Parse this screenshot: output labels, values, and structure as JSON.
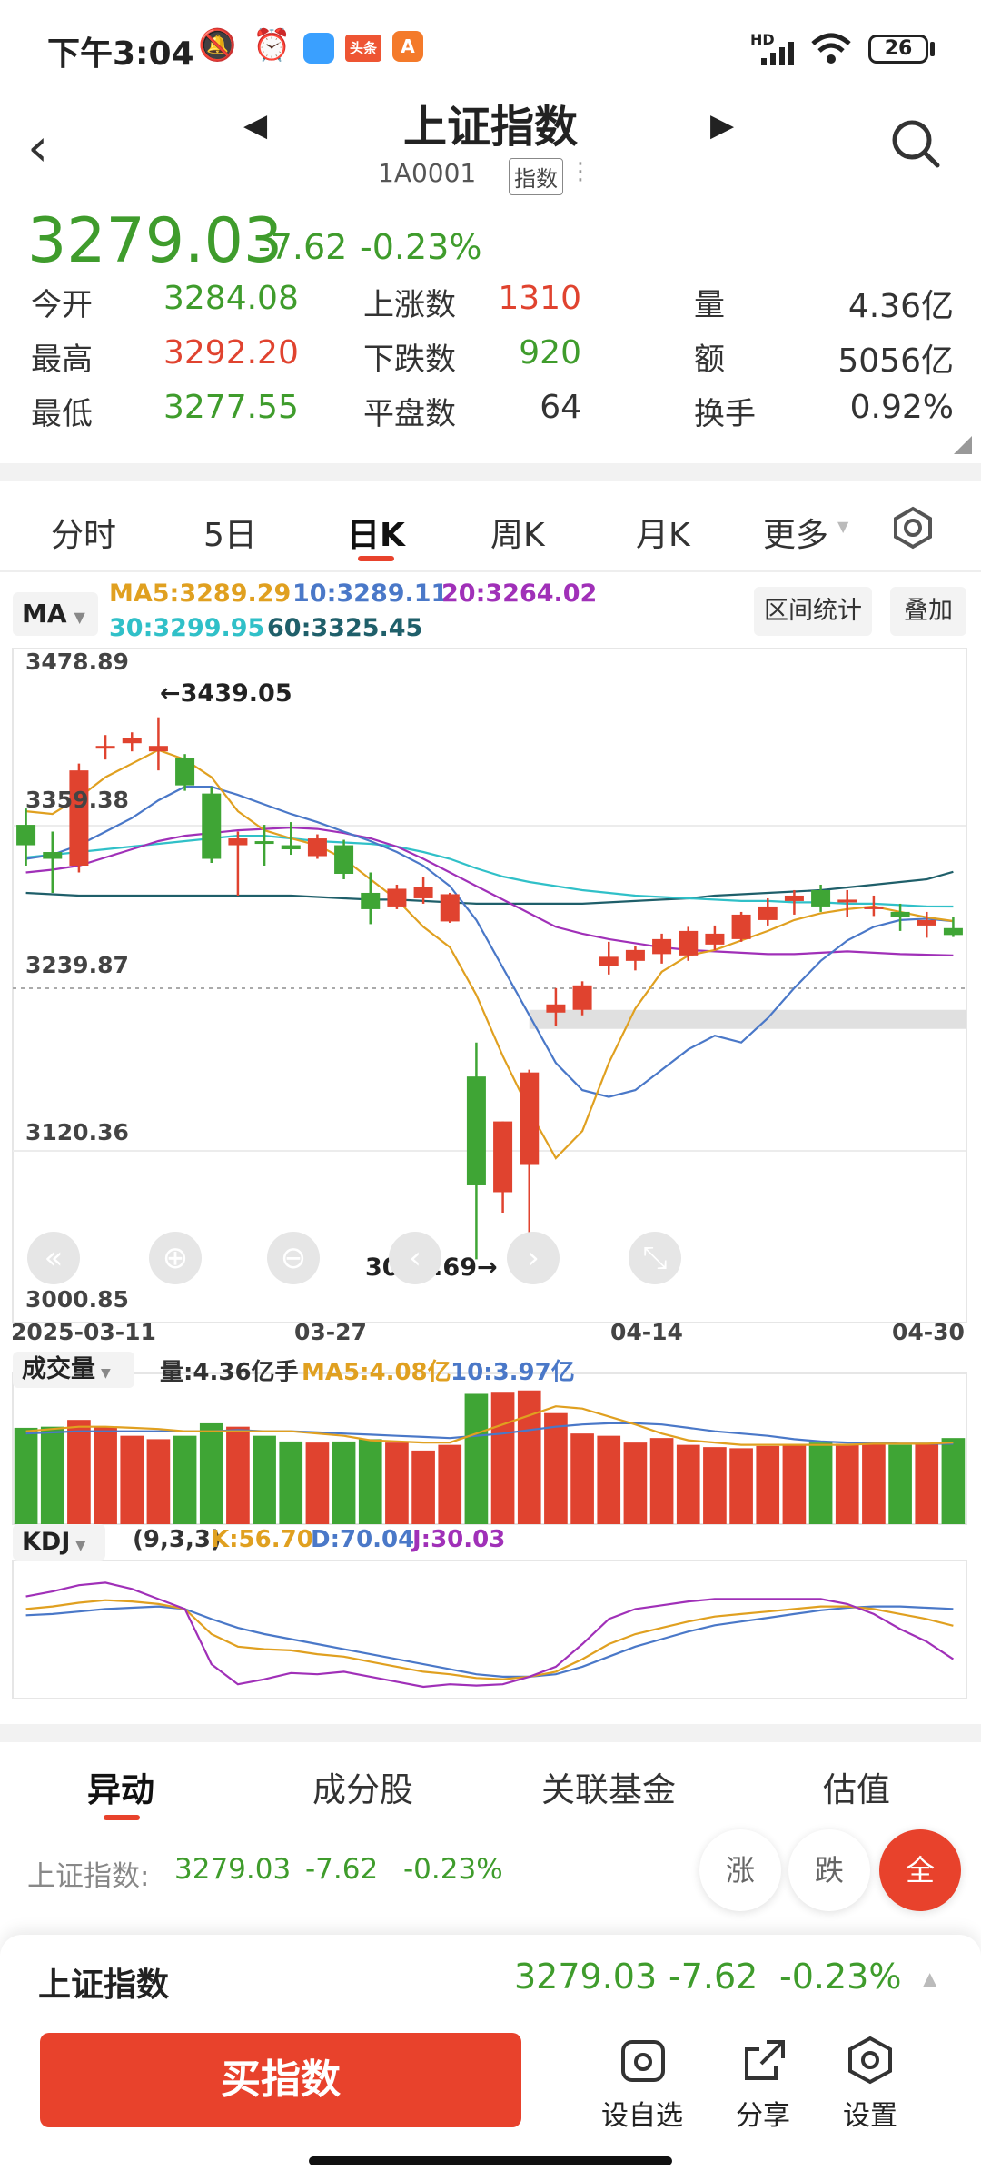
{
  "status": {
    "time": "下午3:04",
    "net": "HD",
    "battery": "26",
    "app1": "头条",
    "app2": "A"
  },
  "header": {
    "title": "上证指数",
    "code": "1A0001",
    "tag": "指数"
  },
  "quote": {
    "price": "3279.03",
    "change": "-7.62",
    "pct": "-0.23%"
  },
  "stats": [
    {
      "label": "今开",
      "value": "3284.08",
      "color": "green"
    },
    {
      "label": "上涨数",
      "value": "1310",
      "color": "red"
    },
    {
      "label": "量",
      "value": "4.36亿",
      "color": "dark"
    },
    {
      "label": "最高",
      "value": "3292.20",
      "color": "red"
    },
    {
      "label": "下跌数",
      "value": "920",
      "color": "green"
    },
    {
      "label": "额",
      "value": "5056亿",
      "color": "dark"
    },
    {
      "label": "最低",
      "value": "3277.55",
      "color": "green"
    },
    {
      "label": "平盘数",
      "value": "64",
      "color": "dark"
    },
    {
      "label": "换手",
      "value": "0.92%",
      "color": "dark"
    }
  ],
  "tabs": [
    "分时",
    "5日",
    "日K",
    "周K",
    "月K",
    "更多"
  ],
  "active_tab": "日K",
  "ma": {
    "selector": "MA",
    "ma5": "MA5:3289.29",
    "ma10": "10:3289.11",
    "ma20": "20:3264.02",
    "ma30": "30:3299.95",
    "ma60": "60:3325.45",
    "btn_range": "区间统计",
    "btn_overlay": "叠加"
  },
  "price_axis": [
    "3478.89",
    "3359.38",
    "3239.87",
    "3120.36",
    "3000.85"
  ],
  "annotations": {
    "high": "←3439.05",
    "low": "3040.69→"
  },
  "date_axis": [
    "2025-03-11",
    "03-27",
    "04-14",
    "04-30"
  ],
  "volume": {
    "selector": "成交量",
    "total": "量:4.36亿手",
    "ma5": "MA5:4.08亿",
    "ma10": "10:3.97亿"
  },
  "kdj": {
    "selector": "KDJ",
    "params": "(9,3,3)",
    "k": "K:56.70",
    "d": "D:70.04",
    "j": "J:30.03"
  },
  "chart_colors": {
    "up": "#e0432f",
    "down": "#3fa535",
    "ma5": "#e0a020",
    "ma10": "#4a78c8",
    "ma20": "#a030b8",
    "ma30": "#30c0c8",
    "ma60": "#1f5f6a"
  },
  "chart_data": {
    "type": "candlestick",
    "y_range": [
      3000.85,
      3478.89
    ],
    "candles": [
      {
        "o": 3360,
        "h": 3372,
        "l": 3330,
        "c": 3345
      },
      {
        "o": 3340,
        "h": 3355,
        "l": 3310,
        "c": 3335
      },
      {
        "o": 3330,
        "h": 3405,
        "l": 3325,
        "c": 3400
      },
      {
        "o": 3416,
        "h": 3426,
        "l": 3408,
        "c": 3418
      },
      {
        "o": 3420,
        "h": 3428,
        "l": 3414,
        "c": 3424
      },
      {
        "o": 3414,
        "h": 3439.05,
        "l": 3400,
        "c": 3418
      },
      {
        "o": 3409,
        "h": 3412,
        "l": 3385,
        "c": 3389
      },
      {
        "o": 3383,
        "h": 3388,
        "l": 3332,
        "c": 3335
      },
      {
        "o": 3345,
        "h": 3355,
        "l": 3308,
        "c": 3350
      },
      {
        "o": 3348,
        "h": 3360,
        "l": 3330,
        "c": 3346
      },
      {
        "o": 3345,
        "h": 3362,
        "l": 3338,
        "c": 3342
      },
      {
        "o": 3337,
        "h": 3353,
        "l": 3335,
        "c": 3350
      },
      {
        "o": 3345,
        "h": 3349,
        "l": 3320,
        "c": 3324
      },
      {
        "o": 3310,
        "h": 3325,
        "l": 3287,
        "c": 3298
      },
      {
        "o": 3300,
        "h": 3316,
        "l": 3298,
        "c": 3313
      },
      {
        "o": 3306,
        "h": 3322,
        "l": 3302,
        "c": 3314
      },
      {
        "o": 3289,
        "h": 3310,
        "l": 3288,
        "c": 3309
      },
      {
        "o": 3175,
        "h": 3200,
        "l": 3040.69,
        "c": 3095
      },
      {
        "o": 3090,
        "h": 3142,
        "l": 3075,
        "c": 3142
      },
      {
        "o": 3110,
        "h": 3180,
        "l": 3060,
        "c": 3178
      },
      {
        "o": 3222,
        "h": 3240,
        "l": 3212,
        "c": 3228
      },
      {
        "o": 3224,
        "h": 3245,
        "l": 3220,
        "c": 3242
      },
      {
        "o": 3256,
        "h": 3274,
        "l": 3250,
        "c": 3263
      },
      {
        "o": 3260,
        "h": 3271,
        "l": 3253,
        "c": 3268
      },
      {
        "o": 3265,
        "h": 3280,
        "l": 3258,
        "c": 3276
      },
      {
        "o": 3264,
        "h": 3285,
        "l": 3260,
        "c": 3282
      },
      {
        "o": 3272,
        "h": 3286,
        "l": 3268,
        "c": 3280
      },
      {
        "o": 3276,
        "h": 3296,
        "l": 3274,
        "c": 3294
      },
      {
        "o": 3290,
        "h": 3306,
        "l": 3286,
        "c": 3300
      },
      {
        "o": 3304,
        "h": 3312,
        "l": 3294,
        "c": 3308
      },
      {
        "o": 3312,
        "h": 3316,
        "l": 3296,
        "c": 3300
      },
      {
        "o": 3304,
        "h": 3312,
        "l": 3292,
        "c": 3305
      },
      {
        "o": 3298,
        "h": 3308,
        "l": 3293,
        "c": 3300
      },
      {
        "o": 3296,
        "h": 3302,
        "l": 3282,
        "c": 3292
      },
      {
        "o": 3286,
        "h": 3296,
        "l": 3277,
        "c": 3290
      },
      {
        "o": 3284.08,
        "h": 3292.2,
        "l": 3277.55,
        "c": 3279.03
      }
    ],
    "ma5_line": [
      3370,
      3368,
      3380,
      3395,
      3405,
      3415,
      3408,
      3395,
      3370,
      3356,
      3350,
      3345,
      3335,
      3320,
      3305,
      3285,
      3270,
      3235,
      3190,
      3150,
      3115,
      3135,
      3185,
      3225,
      3252,
      3264,
      3268,
      3275,
      3282,
      3290,
      3295,
      3298,
      3300,
      3296,
      3292,
      3289.29
    ],
    "ma10_line": [
      3335,
      3338,
      3345,
      3355,
      3365,
      3378,
      3388,
      3388,
      3382,
      3375,
      3368,
      3362,
      3355,
      3348,
      3340,
      3330,
      3315,
      3290,
      3255,
      3220,
      3185,
      3165,
      3160,
      3165,
      3180,
      3195,
      3205,
      3200,
      3218,
      3240,
      3260,
      3275,
      3285,
      3290,
      3291,
      3289.11
    ],
    "ma20_line": [
      3325,
      3327,
      3330,
      3336,
      3342,
      3348,
      3352,
      3354,
      3356,
      3357,
      3358,
      3357,
      3354,
      3350,
      3344,
      3335,
      3325,
      3315,
      3305,
      3295,
      3285,
      3280,
      3276,
      3273,
      3270,
      3268,
      3267,
      3266,
      3265,
      3265,
      3266,
      3267,
      3266,
      3265,
      3264.5,
      3264.02
    ],
    "ma30_line": [
      3336,
      3338,
      3340,
      3342,
      3344,
      3346,
      3348,
      3350,
      3352,
      3352,
      3350,
      3348,
      3347,
      3346,
      3344,
      3340,
      3335,
      3328,
      3322,
      3318,
      3315,
      3312,
      3310,
      3308,
      3307,
      3306,
      3305,
      3304,
      3304,
      3303,
      3303,
      3302,
      3302,
      3301,
      3300,
      3299.95
    ],
    "ma60_line": [
      3310,
      3309,
      3308,
      3308,
      3308,
      3308,
      3308,
      3308,
      3308,
      3308,
      3308,
      3307,
      3306,
      3305,
      3305,
      3304,
      3303,
      3302,
      3302,
      3302,
      3302,
      3302,
      3303,
      3304,
      3305,
      3306,
      3308,
      3309,
      3310,
      3311,
      3312,
      3314,
      3316,
      3318,
      3320,
      3325.45
    ],
    "volume_bars": [
      0.85,
      0.86,
      0.92,
      0.86,
      0.78,
      0.75,
      0.78,
      0.89,
      0.86,
      0.78,
      0.73,
      0.72,
      0.73,
      0.75,
      0.72,
      0.65,
      0.7,
      1.15,
      1.16,
      1.18,
      0.98,
      0.8,
      0.78,
      0.72,
      0.76,
      0.7,
      0.68,
      0.67,
      0.69,
      0.7,
      0.72,
      0.71,
      0.71,
      0.7,
      0.71,
      0.76
    ],
    "volume_ma5": [
      0.82,
      0.84,
      0.86,
      0.86,
      0.85,
      0.84,
      0.82,
      0.82,
      0.82,
      0.82,
      0.82,
      0.8,
      0.78,
      0.74,
      0.73,
      0.72,
      0.72,
      0.8,
      0.88,
      0.96,
      1.04,
      1.02,
      0.95,
      0.88,
      0.8,
      0.74,
      0.72,
      0.7,
      0.7,
      0.7,
      0.7,
      0.7,
      0.71,
      0.71,
      0.71,
      0.72
    ],
    "volume_ma10": [
      0.8,
      0.81,
      0.82,
      0.82,
      0.82,
      0.82,
      0.82,
      0.82,
      0.83,
      0.82,
      0.82,
      0.81,
      0.8,
      0.79,
      0.78,
      0.77,
      0.76,
      0.78,
      0.8,
      0.83,
      0.86,
      0.88,
      0.89,
      0.89,
      0.88,
      0.85,
      0.82,
      0.8,
      0.78,
      0.75,
      0.73,
      0.72,
      0.72,
      0.71,
      0.71,
      0.71
    ],
    "kdj_k": [
      70,
      72,
      75,
      77,
      76,
      74,
      70,
      50,
      40,
      38,
      37,
      34,
      32,
      28,
      24,
      20,
      18,
      15,
      14,
      16,
      20,
      30,
      42,
      50,
      55,
      60,
      64,
      66,
      68,
      70,
      72,
      72,
      70,
      66,
      62,
      56.7
    ],
    "kdj_d": [
      65,
      66,
      68,
      70,
      71,
      72,
      70,
      62,
      55,
      50,
      46,
      42,
      38,
      34,
      30,
      26,
      22,
      18,
      16,
      16,
      18,
      24,
      32,
      40,
      46,
      52,
      57,
      60,
      63,
      66,
      69,
      71,
      72,
      72,
      71,
      70.04
    ],
    "kdj_j": [
      80,
      84,
      89,
      91,
      86,
      78,
      70,
      26,
      10,
      14,
      19,
      18,
      20,
      16,
      12,
      8,
      10,
      9,
      10,
      16,
      24,
      42,
      62,
      70,
      73,
      76,
      78,
      78,
      78,
      78,
      78,
      74,
      66,
      54,
      44,
      30.03
    ]
  },
  "bottom_tabs": [
    "异动",
    "成分股",
    "关联基金",
    "估值"
  ],
  "ticker": {
    "label": "上证指数:",
    "price": "3279.03",
    "change": "-7.62",
    "pct": "-0.23%"
  },
  "filters": [
    "涨",
    "跌",
    "全"
  ],
  "footer": {
    "name": "上证指数",
    "price": "3279.03",
    "change": "-7.62",
    "pct": "-0.23%",
    "buy": "买指数",
    "watch": "设自选",
    "share": "分享",
    "settings": "设置"
  }
}
